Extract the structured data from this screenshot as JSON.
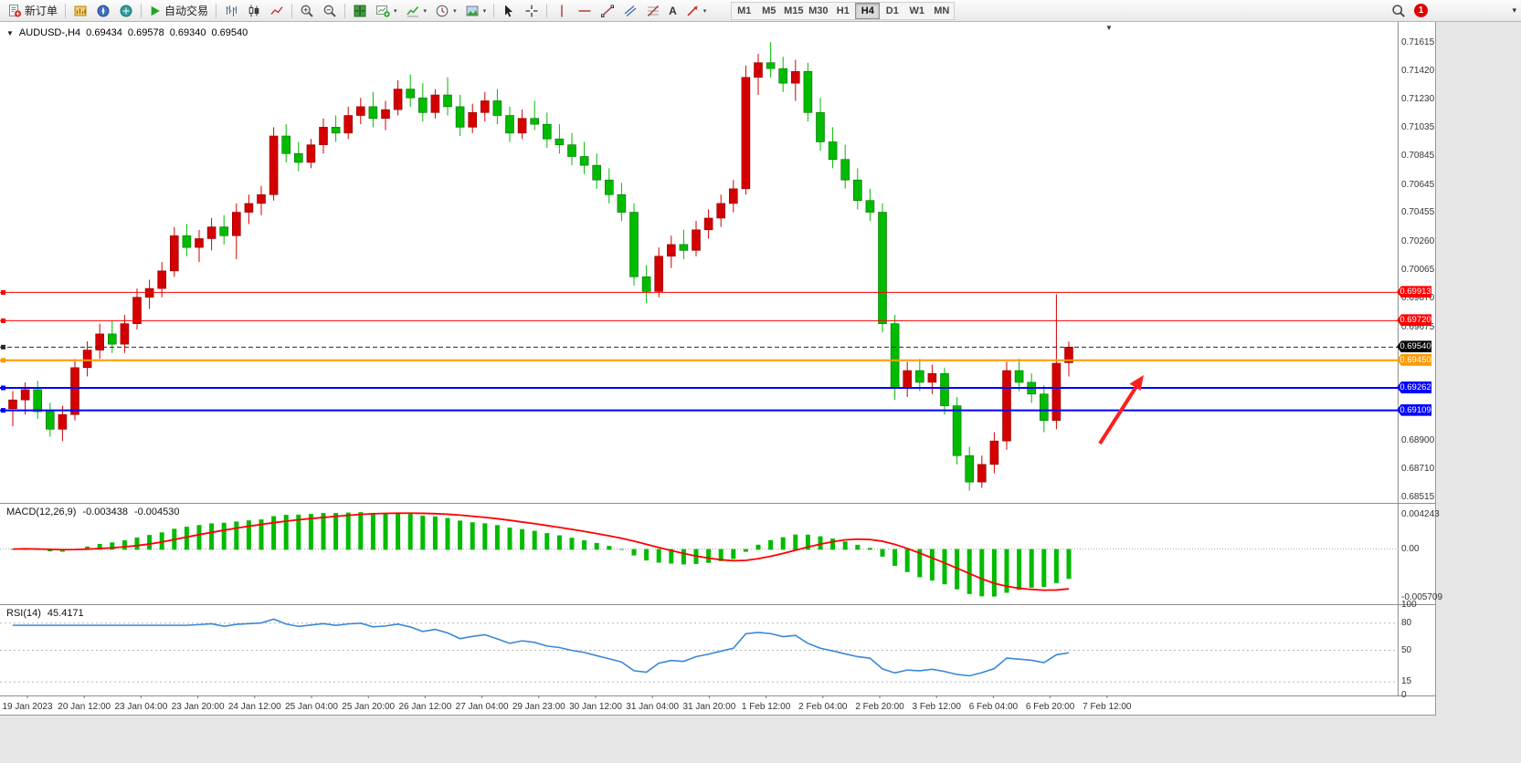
{
  "toolbar": {
    "new_order_label": "新订单",
    "autotrading_label": "自动交易",
    "timeframes": [
      "M1",
      "M5",
      "M15",
      "M30",
      "H1",
      "H4",
      "D1",
      "W1",
      "MN"
    ],
    "active_timeframe": "H4",
    "notification_count": "1",
    "notification_color": "#DF0000"
  },
  "icons": {
    "collapse": "▼",
    "shift_marker": "▼",
    "caret": "▾",
    "overflow_chevron": "▾",
    "text_tool": "A"
  },
  "chart_header": {
    "title": "AUDUSD-,H4",
    "open": "0.69434",
    "high": "0.69578",
    "low": "0.69340",
    "close": "0.69540"
  },
  "chart_data": {
    "type": "candlestick",
    "symbol": "AUDUSD-",
    "timeframe": "H4",
    "bull_color": "#D40000",
    "bear_color": "#00BB00",
    "arrow_color": "#FF1F1F",
    "ylim": [
      0.68478,
      0.71758
    ],
    "candles": [
      [
        0.6912,
        0.6924,
        0.69,
        0.6918
      ],
      [
        0.6918,
        0.693,
        0.6908,
        0.6925
      ],
      [
        0.6925,
        0.6931,
        0.6905,
        0.691
      ],
      [
        0.691,
        0.6916,
        0.6893,
        0.6898
      ],
      [
        0.6898,
        0.6914,
        0.689,
        0.6908
      ],
      [
        0.6908,
        0.6946,
        0.6904,
        0.694
      ],
      [
        0.694,
        0.6958,
        0.6934,
        0.6952
      ],
      [
        0.6952,
        0.697,
        0.6946,
        0.6963
      ],
      [
        0.6963,
        0.6972,
        0.695,
        0.6956
      ],
      [
        0.6956,
        0.6976,
        0.695,
        0.697
      ],
      [
        0.697,
        0.6994,
        0.6966,
        0.6988
      ],
      [
        0.6988,
        0.7,
        0.698,
        0.6994
      ],
      [
        0.6994,
        0.7012,
        0.6988,
        0.7006
      ],
      [
        0.7006,
        0.7036,
        0.7002,
        0.703
      ],
      [
        0.703,
        0.7038,
        0.7016,
        0.7022
      ],
      [
        0.7022,
        0.7034,
        0.7012,
        0.7028
      ],
      [
        0.7028,
        0.7042,
        0.702,
        0.7036
      ],
      [
        0.7036,
        0.7044,
        0.7024,
        0.703
      ],
      [
        0.703,
        0.7052,
        0.7014,
        0.7046
      ],
      [
        0.7046,
        0.7058,
        0.7038,
        0.7052
      ],
      [
        0.7052,
        0.7064,
        0.7044,
        0.7058
      ],
      [
        0.7058,
        0.7104,
        0.7054,
        0.7098
      ],
      [
        0.7098,
        0.7106,
        0.708,
        0.7086
      ],
      [
        0.7086,
        0.7094,
        0.7074,
        0.708
      ],
      [
        0.708,
        0.7096,
        0.7076,
        0.7092
      ],
      [
        0.7092,
        0.711,
        0.7086,
        0.7104
      ],
      [
        0.7104,
        0.7112,
        0.7094,
        0.71
      ],
      [
        0.71,
        0.7118,
        0.7096,
        0.7112
      ],
      [
        0.7112,
        0.7124,
        0.7106,
        0.7118
      ],
      [
        0.7118,
        0.7128,
        0.7104,
        0.711
      ],
      [
        0.711,
        0.7122,
        0.7102,
        0.7116
      ],
      [
        0.7116,
        0.7136,
        0.7112,
        0.713
      ],
      [
        0.713,
        0.714,
        0.7118,
        0.7124
      ],
      [
        0.7124,
        0.7134,
        0.7108,
        0.7114
      ],
      [
        0.7114,
        0.713,
        0.711,
        0.7126
      ],
      [
        0.7126,
        0.7138,
        0.7112,
        0.7118
      ],
      [
        0.7118,
        0.7126,
        0.7098,
        0.7104
      ],
      [
        0.7104,
        0.712,
        0.71,
        0.7114
      ],
      [
        0.7114,
        0.7128,
        0.7108,
        0.7122
      ],
      [
        0.7122,
        0.713,
        0.7106,
        0.7112
      ],
      [
        0.7112,
        0.7118,
        0.7094,
        0.71
      ],
      [
        0.71,
        0.7116,
        0.7096,
        0.711
      ],
      [
        0.711,
        0.7122,
        0.7102,
        0.7106
      ],
      [
        0.7106,
        0.7114,
        0.709,
        0.7096
      ],
      [
        0.7096,
        0.7106,
        0.7086,
        0.7092
      ],
      [
        0.7092,
        0.71,
        0.7078,
        0.7084
      ],
      [
        0.7084,
        0.7094,
        0.7072,
        0.7078
      ],
      [
        0.7078,
        0.7086,
        0.7062,
        0.7068
      ],
      [
        0.7068,
        0.7076,
        0.7052,
        0.7058
      ],
      [
        0.7058,
        0.7066,
        0.704,
        0.7046
      ],
      [
        0.7046,
        0.7052,
        0.6996,
        0.7002
      ],
      [
        0.7002,
        0.701,
        0.6984,
        0.6992
      ],
      [
        0.6992,
        0.7022,
        0.6988,
        0.7016
      ],
      [
        0.7016,
        0.703,
        0.7008,
        0.7024
      ],
      [
        0.7024,
        0.7034,
        0.7014,
        0.702
      ],
      [
        0.702,
        0.704,
        0.7016,
        0.7034
      ],
      [
        0.7034,
        0.7048,
        0.7028,
        0.7042
      ],
      [
        0.7042,
        0.7058,
        0.7036,
        0.7052
      ],
      [
        0.7052,
        0.7068,
        0.7046,
        0.7062
      ],
      [
        0.7062,
        0.7146,
        0.7058,
        0.7138
      ],
      [
        0.7138,
        0.7154,
        0.7126,
        0.7148
      ],
      [
        0.7148,
        0.7162,
        0.7138,
        0.7144
      ],
      [
        0.7144,
        0.7152,
        0.7128,
        0.7134
      ],
      [
        0.7134,
        0.715,
        0.7122,
        0.7142
      ],
      [
        0.7142,
        0.7148,
        0.7108,
        0.7114
      ],
      [
        0.7114,
        0.7124,
        0.7088,
        0.7094
      ],
      [
        0.7094,
        0.7104,
        0.7076,
        0.7082
      ],
      [
        0.7082,
        0.7092,
        0.7062,
        0.7068
      ],
      [
        0.7068,
        0.7076,
        0.7048,
        0.7054
      ],
      [
        0.7054,
        0.7062,
        0.704,
        0.7046
      ],
      [
        0.7046,
        0.7052,
        0.6964,
        0.697
      ],
      [
        0.697,
        0.6976,
        0.6918,
        0.6926
      ],
      [
        0.6926,
        0.6944,
        0.692,
        0.6938
      ],
      [
        0.6938,
        0.6946,
        0.6924,
        0.693
      ],
      [
        0.693,
        0.6942,
        0.6922,
        0.6936
      ],
      [
        0.6936,
        0.694,
        0.6908,
        0.6914
      ],
      [
        0.6914,
        0.692,
        0.6874,
        0.688
      ],
      [
        0.688,
        0.6886,
        0.6856,
        0.6862
      ],
      [
        0.6862,
        0.688,
        0.6858,
        0.6874
      ],
      [
        0.6874,
        0.6896,
        0.6868,
        0.689
      ],
      [
        0.689,
        0.6944,
        0.6884,
        0.6938
      ],
      [
        0.6938,
        0.6946,
        0.6924,
        0.693
      ],
      [
        0.693,
        0.6936,
        0.6916,
        0.6922
      ],
      [
        0.6922,
        0.6928,
        0.6896,
        0.6904
      ],
      [
        0.6904,
        0.699,
        0.6898,
        0.6943
      ],
      [
        0.69434,
        0.69578,
        0.6934,
        0.6954
      ]
    ],
    "levels": [
      {
        "price": 0.69913,
        "label": "0.69913",
        "color": "#FF0000",
        "width": 1,
        "style": "solid"
      },
      {
        "price": 0.6972,
        "label": "0.69720",
        "color": "#FF0000",
        "width": 1,
        "style": "solid"
      },
      {
        "price": 0.6954,
        "label": "0.69540",
        "color": "#2A2A2A",
        "width": 1,
        "style": "dashed",
        "tag_bg": "#000000"
      },
      {
        "price": 0.6945,
        "label": "0.69450",
        "color": "#FF9900",
        "width": 2,
        "style": "solid"
      },
      {
        "price": 0.69262,
        "label": "0.69262",
        "color": "#0000FF",
        "width": 2,
        "style": "solid"
      },
      {
        "price": 0.69109,
        "label": "0.69109",
        "color": "#0000FF",
        "width": 2,
        "style": "solid"
      }
    ],
    "price_axis_labels": [
      "0.71615",
      "0.71420",
      "0.71230",
      "0.71035",
      "0.70845",
      "0.70645",
      "0.70455",
      "0.70260",
      "0.70065",
      "0.69870",
      "0.69675",
      "0.68900",
      "0.68710",
      "0.68515"
    ],
    "time_axis_labels": [
      "19 Jan 2023",
      "20 Jan 12:00",
      "23 Jan 04:00",
      "23 Jan 20:00",
      "24 Jan 12:00",
      "25 Jan 04:00",
      "25 Jan 20:00",
      "26 Jan 12:00",
      "27 Jan 04:00",
      "29 Jan 23:00",
      "30 Jan 12:00",
      "31 Jan 04:00",
      "31 Jan 20:00",
      "1 Feb 12:00",
      "2 Feb 04:00",
      "2 Feb 20:00",
      "3 Feb 12:00",
      "6 Feb 04:00",
      "6 Feb 20:00",
      "7 Feb 12:00"
    ],
    "indicators": {
      "macd": {
        "label": "MACD(12,26,9)",
        "value_main": "-0.003438",
        "value_signal": "-0.004530",
        "params": [
          12,
          26,
          9
        ],
        "axis_labels": [
          "0.004243",
          "0.00",
          "-0.005709"
        ],
        "histogram_color": "#00BB00",
        "signal_color": "#FF0000"
      },
      "rsi": {
        "label": "RSI(14)",
        "value": "45.4171",
        "period": 14,
        "axis_labels": [
          "100",
          "80",
          "50",
          "15",
          "0"
        ],
        "levels": [
          80,
          50,
          15
        ],
        "line_color": "#3A87D8"
      }
    }
  }
}
